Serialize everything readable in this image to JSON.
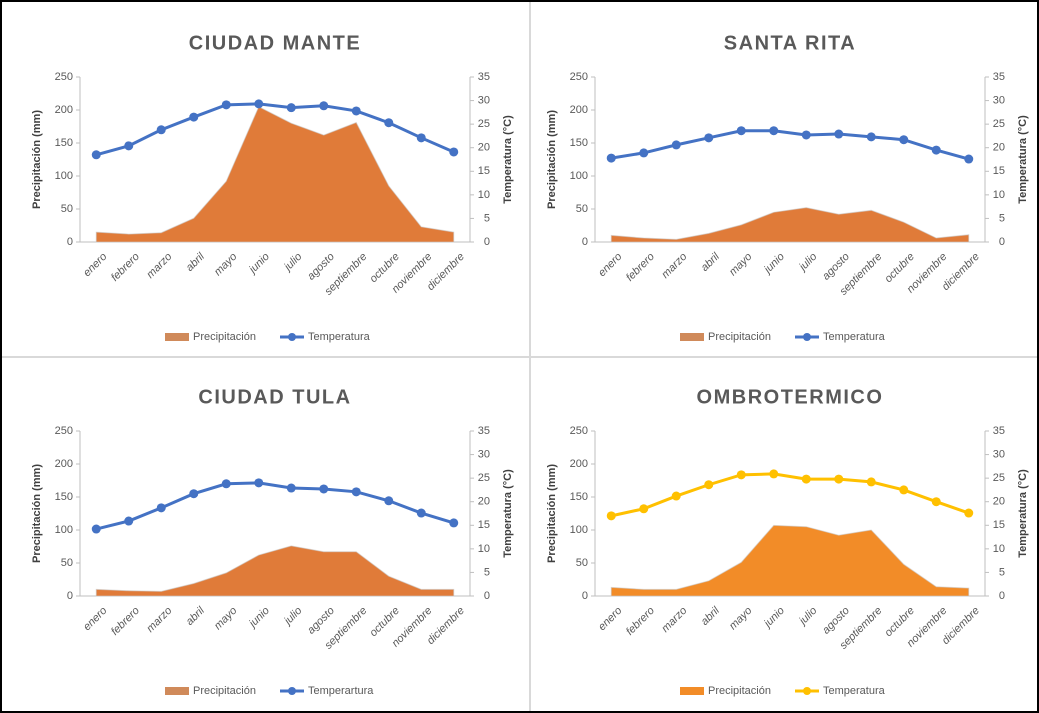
{
  "chart_data": [
    {
      "type": "combo",
      "title": "CIUDAD MANTE",
      "categories": [
        "enero",
        "febrero",
        "marzo",
        "abril",
        "mayo",
        "junio",
        "julio",
        "agosto",
        "septiembre",
        "octubre",
        "noviembre",
        "diciembre"
      ],
      "y_label": "Precipitación (mm)",
      "y2_label": "Temperatura (°C)",
      "ylim": [
        0,
        250
      ],
      "yticks": [
        0,
        50,
        100,
        150,
        200,
        250
      ],
      "y2lim": [
        0,
        35
      ],
      "y2ticks": [
        0,
        5,
        10,
        15,
        20,
        25,
        30,
        35
      ],
      "series": [
        {
          "name": "Precipitación",
          "type": "area",
          "color": "#E07B39",
          "legend_color": "#D08A5A",
          "values": [
            15,
            12,
            14,
            36,
            92,
            205,
            180,
            162,
            181,
            85,
            23,
            15
          ]
        },
        {
          "name": "Temperatura",
          "type": "line",
          "axis": "y2",
          "color": "#4472C4",
          "values": [
            18.5,
            20.4,
            23.8,
            26.5,
            29.1,
            29.3,
            28.5,
            28.9,
            27.8,
            25.3,
            22.1,
            19.1
          ]
        }
      ]
    },
    {
      "type": "combo",
      "title": "SANTA RITA",
      "categories": [
        "enero",
        "febrero",
        "marzo",
        "abril",
        "mayo",
        "junio",
        "julio",
        "agosto",
        "septiembre",
        "octubre",
        "noviembre",
        "diciembre"
      ],
      "y_label": "Precipitación (mm)",
      "y2_label": "Temperatura (°C)",
      "ylim": [
        0,
        250
      ],
      "yticks": [
        0,
        50,
        100,
        150,
        200,
        250
      ],
      "y2lim": [
        0,
        35
      ],
      "y2ticks": [
        0,
        5,
        10,
        15,
        20,
        25,
        30,
        35
      ],
      "series": [
        {
          "name": "Precipitación",
          "type": "area",
          "color": "#E07B39",
          "legend_color": "#D08A5A",
          "values": [
            10,
            6,
            4,
            13,
            26,
            45,
            52,
            42,
            48,
            30,
            6,
            11
          ]
        },
        {
          "name": "Temperatura",
          "type": "line",
          "axis": "y2",
          "color": "#4472C4",
          "values": [
            17.8,
            18.9,
            20.6,
            22.1,
            23.6,
            23.6,
            22.7,
            22.9,
            22.3,
            21.7,
            19.5,
            17.6
          ]
        }
      ]
    },
    {
      "type": "combo",
      "title": "CIUDAD TULA",
      "categories": [
        "enero",
        "febrero",
        "marzo",
        "abril",
        "mayo",
        "junio",
        "julio",
        "agosto",
        "septiembre",
        "octubre",
        "noviembre",
        "diciembre"
      ],
      "y_label": "Precipitación (mm)",
      "y2_label": "Temperatura (°C)",
      "ylim": [
        0,
        250
      ],
      "yticks": [
        0,
        50,
        100,
        150,
        200,
        250
      ],
      "y2lim": [
        0,
        35
      ],
      "y2ticks": [
        0,
        5,
        10,
        15,
        20,
        25,
        30,
        35
      ],
      "series": [
        {
          "name": "Precipitación",
          "type": "area",
          "color": "#E07B39",
          "legend_color": "#D08A5A",
          "values": [
            10,
            8,
            7,
            19,
            35,
            62,
            76,
            67,
            67,
            30,
            10,
            10
          ]
        },
        {
          "name": "Temperartura",
          "type": "line",
          "axis": "y2",
          "color": "#4472C4",
          "values": [
            14.2,
            15.9,
            18.7,
            21.7,
            23.8,
            24.0,
            22.9,
            22.7,
            22.1,
            20.2,
            17.6,
            15.5
          ]
        }
      ]
    },
    {
      "type": "combo",
      "title": "OMBROTERMICO",
      "categories": [
        "enero",
        "febrero",
        "marzo",
        "abril",
        "mayo",
        "junio",
        "julio",
        "agosto",
        "septiembre",
        "octubre",
        "noviembre",
        "diciembre"
      ],
      "y_label": "Precipitación (mm)",
      "y2_label": "Temperatura (°C)",
      "ylim": [
        0,
        250
      ],
      "yticks": [
        0,
        50,
        100,
        150,
        200,
        250
      ],
      "y2lim": [
        0,
        35
      ],
      "y2ticks": [
        0,
        5,
        10,
        15,
        20,
        25,
        30,
        35
      ],
      "series": [
        {
          "name": "Precipitación",
          "type": "area",
          "color": "#F28C28",
          "legend_color": "#F28C28",
          "values": [
            13,
            10,
            10,
            23,
            51,
            107,
            105,
            92,
            100,
            48,
            14,
            12
          ]
        },
        {
          "name": "Temperatura",
          "type": "line",
          "axis": "y2",
          "color": "#FFC000",
          "values": [
            17.0,
            18.5,
            21.2,
            23.6,
            25.7,
            25.9,
            24.8,
            24.8,
            24.2,
            22.5,
            20.0,
            17.6
          ]
        }
      ]
    }
  ]
}
